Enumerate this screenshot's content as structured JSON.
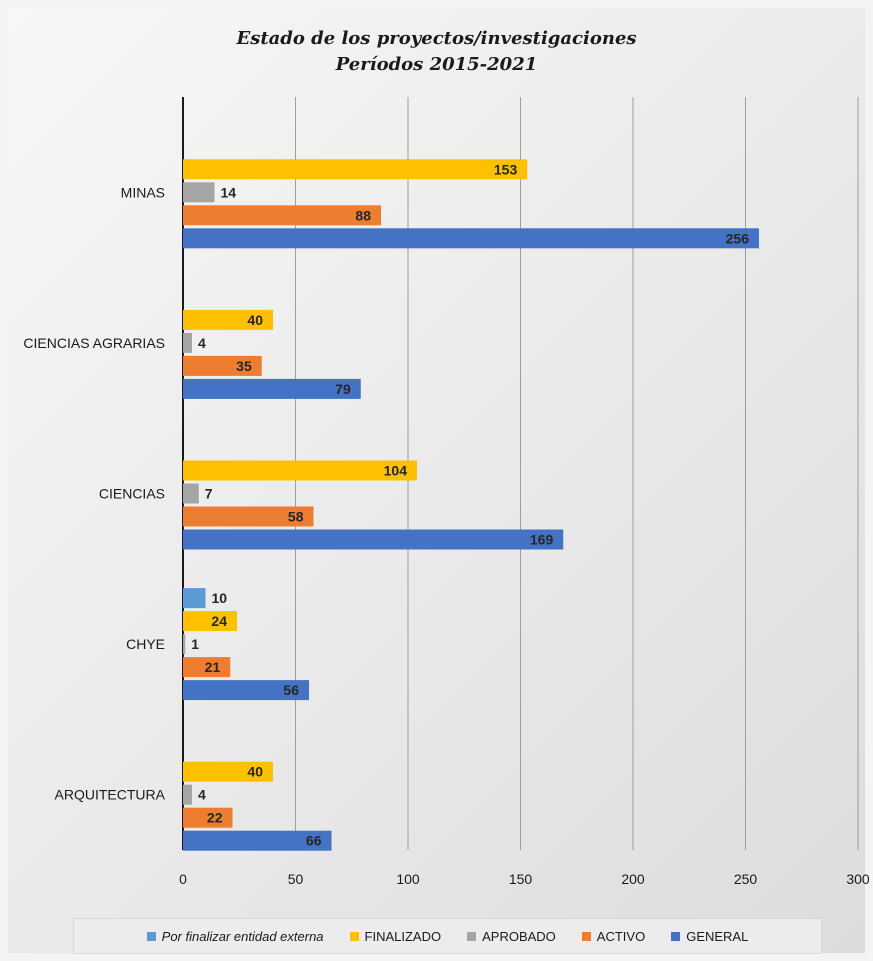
{
  "title_line1": "Estado de los proyectos/investigaciones",
  "title_line2": "Períodos 2015-2021",
  "chart_data": {
    "type": "bar",
    "orientation": "horizontal",
    "categories": [
      "MINAS",
      "CIENCIAS AGRARIAS",
      "CIENCIAS",
      "CHYE",
      "ARQUITECTURA"
    ],
    "series": [
      {
        "name": "Por finalizar entidad externa",
        "color": "#5b9bd5",
        "values": [
          null,
          null,
          null,
          10,
          null
        ]
      },
      {
        "name": "FINALIZADO",
        "color": "#ffc000",
        "values": [
          153,
          40,
          104,
          24,
          40
        ]
      },
      {
        "name": "APROBADO",
        "color": "#a5a5a5",
        "values": [
          14,
          4,
          7,
          1,
          4
        ]
      },
      {
        "name": "ACTIVO",
        "color": "#ed7d31",
        "values": [
          88,
          35,
          58,
          21,
          22
        ]
      },
      {
        "name": "GENERAL",
        "color": "#4472c4",
        "values": [
          256,
          79,
          169,
          56,
          66
        ]
      }
    ],
    "xlim": [
      0,
      300
    ],
    "xticks": [
      "0",
      "50",
      "100",
      "150",
      "200",
      "250",
      "300"
    ],
    "grid": "vertical",
    "legend_position": "bottom"
  }
}
